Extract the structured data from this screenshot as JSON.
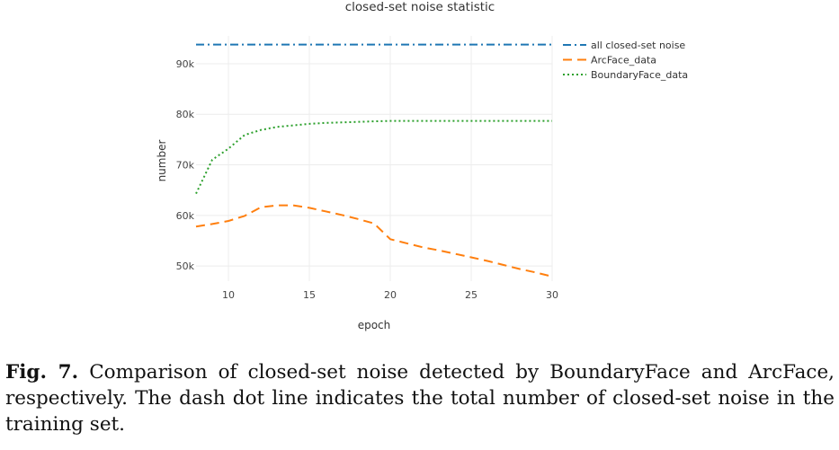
{
  "chart_data": {
    "type": "line",
    "title": "closed-set noise statistic",
    "xlabel": "epoch",
    "ylabel": "number",
    "xlim": [
      8,
      30
    ],
    "ylim": [
      47000,
      95500
    ],
    "x_ticks": [
      10,
      15,
      20,
      25,
      30
    ],
    "x_tick_labels": [
      "10",
      "15",
      "20",
      "25",
      "30"
    ],
    "y_ticks": [
      50000,
      60000,
      70000,
      80000,
      90000
    ],
    "y_tick_labels": [
      "50k",
      "60k",
      "70k",
      "80k",
      "90k"
    ],
    "grid": true,
    "legend_position": "top-right",
    "series": [
      {
        "name": "all closed-set noise",
        "style": "dashdot",
        "color": "#1f77b4",
        "x": [
          8,
          30
        ],
        "values": [
          93800,
          93800
        ]
      },
      {
        "name": "ArcFace_data",
        "style": "dashed",
        "color": "#ff7f0e",
        "x": [
          8,
          9,
          10,
          11,
          12,
          13,
          14,
          15,
          16,
          17,
          18,
          19,
          20,
          21,
          22,
          23,
          24,
          25,
          26,
          27,
          28,
          29,
          30
        ],
        "values": [
          57800,
          58300,
          58900,
          59900,
          61600,
          62000,
          62000,
          61500,
          60800,
          60100,
          59300,
          58400,
          55300,
          54500,
          53700,
          53100,
          52400,
          51700,
          51000,
          50200,
          49400,
          48700,
          47900
        ]
      },
      {
        "name": "BoundaryFace_data",
        "style": "dotted",
        "color": "#2ca02c",
        "x": [
          8,
          9,
          10,
          11,
          12,
          13,
          14,
          15,
          16,
          17,
          18,
          19,
          20,
          21,
          22,
          23,
          24,
          25,
          26,
          27,
          28,
          29,
          30
        ],
        "values": [
          64300,
          71000,
          73200,
          75900,
          76900,
          77500,
          77800,
          78100,
          78300,
          78400,
          78500,
          78600,
          78700,
          78700,
          78700,
          78700,
          78700,
          78700,
          78700,
          78700,
          78700,
          78700,
          78700
        ]
      }
    ]
  },
  "caption": {
    "label": "Fig. 7.",
    "text": "Comparison of closed-set noise detected by BoundaryFace and ArcFace, respectively. The dash dot line indicates the total number of closed-set noise in the training set."
  }
}
